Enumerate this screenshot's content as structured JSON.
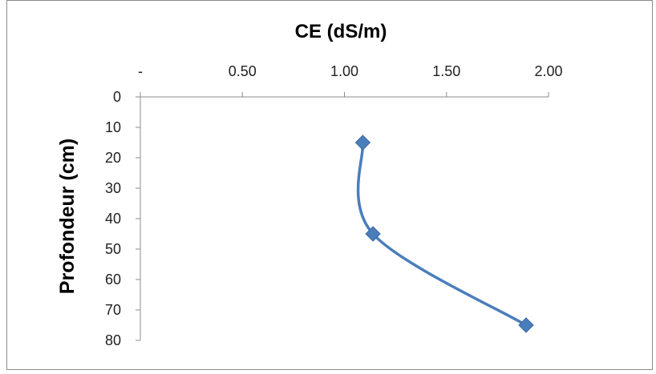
{
  "chart_data": {
    "type": "line",
    "title": "",
    "xlabel": "CE (dS/m)",
    "ylabel": "Profondeur  (cm)",
    "x_axis_position": "top",
    "y_axis_inverted": true,
    "xlim": [
      0,
      2.0
    ],
    "ylim": [
      0,
      80
    ],
    "x_ticks": [
      0,
      0.5,
      1.0,
      1.5,
      2.0
    ],
    "x_tick_labels": [
      "-",
      "0.50",
      "1.00",
      "1.50",
      "2.00"
    ],
    "y_ticks": [
      0,
      10,
      20,
      30,
      40,
      50,
      60,
      70,
      80
    ],
    "y_tick_labels": [
      "0",
      "10",
      "20",
      "30",
      "40",
      "50",
      "60",
      "70",
      "80"
    ],
    "grid": false,
    "legend": "none",
    "smooth": true,
    "marker": "diamond",
    "series": [
      {
        "x": [
          1.09,
          1.14,
          1.89
        ],
        "y": [
          15,
          45,
          75
        ],
        "color": "#4a7ebb"
      }
    ]
  }
}
